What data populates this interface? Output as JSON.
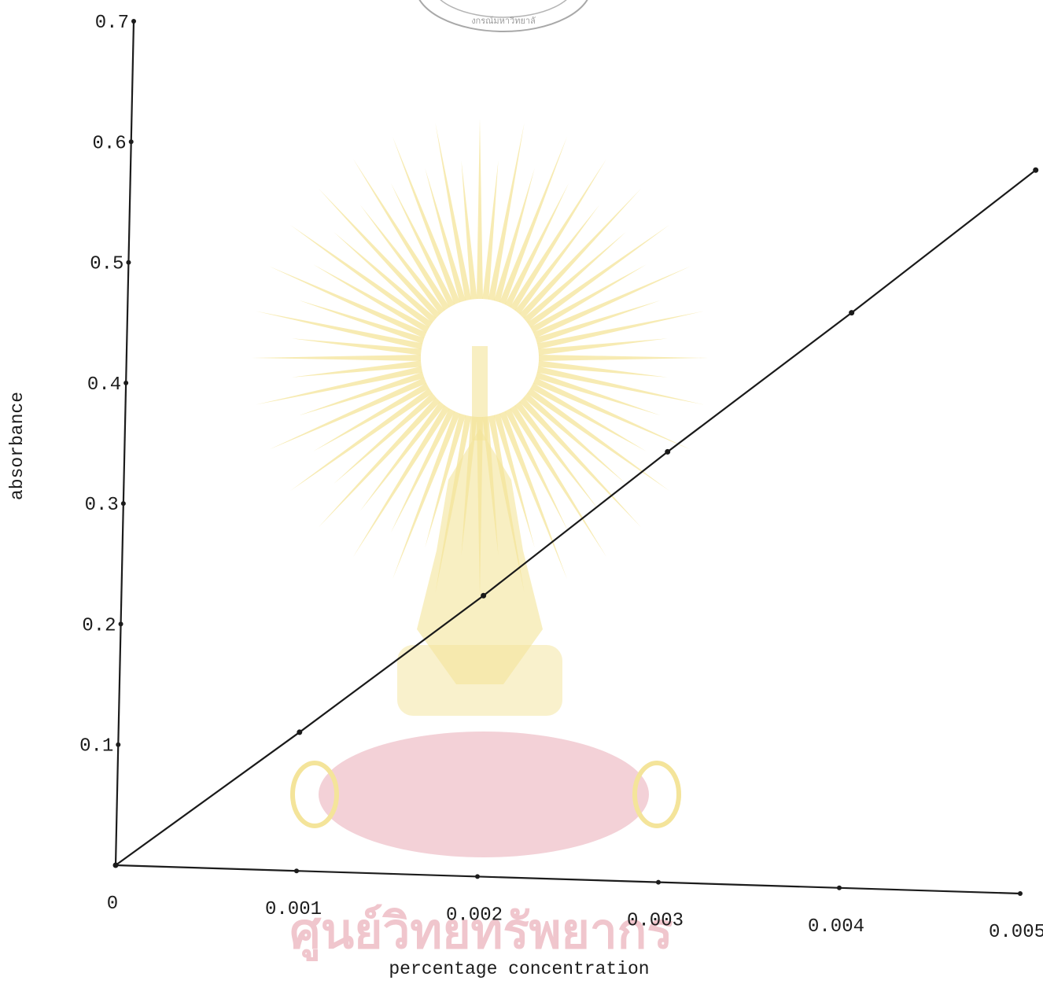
{
  "watermark": {
    "text": "ศูนย์วิทยทรัพยากร",
    "seal_text": "งกรณ์มหาวิทยาลั",
    "ray_color": "#f4e49a",
    "cushion_color": "#f1c9d0",
    "text_color": "#f0c6cd"
  },
  "chart_data": {
    "type": "line",
    "title": "",
    "xlabel": "percentage concentration",
    "ylabel": "absorbance",
    "xlim": [
      0,
      0.005
    ],
    "ylim": [
      0,
      0.7
    ],
    "xticks": [
      0,
      0.001,
      0.002,
      0.003,
      0.004,
      0.005
    ],
    "xtick_labels": [
      "0",
      "0.001",
      "0.002",
      "0.003",
      "0.004",
      "0.005"
    ],
    "yticks": [
      0.1,
      0.2,
      0.3,
      0.4,
      0.5,
      0.6,
      0.7
    ],
    "ytick_labels": [
      "0.1",
      "0.2",
      "0.3",
      "0.4",
      "0.5",
      "0.6",
      "0.7"
    ],
    "grid": false,
    "series": [
      {
        "name": "",
        "x": [
          0,
          0.001,
          0.002,
          0.003,
          0.004,
          0.005
        ],
        "y": [
          0,
          0.115,
          0.233,
          0.357,
          0.477,
          0.6
        ],
        "color": "#1a1a1a"
      }
    ]
  }
}
